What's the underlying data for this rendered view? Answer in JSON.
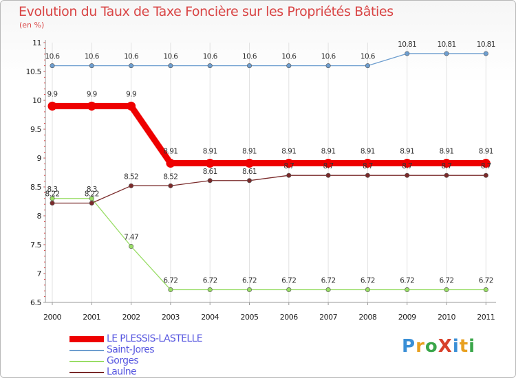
{
  "title": "Evolution du Taux de Taxe Foncière sur les Propriétés Bâties",
  "unit": "(en %)",
  "logo_text": "ProXiti",
  "chart_data": {
    "type": "line",
    "categories": [
      "2000",
      "2001",
      "2002",
      "2003",
      "2004",
      "2005",
      "2006",
      "2007",
      "2008",
      "2009",
      "2010",
      "2011"
    ],
    "ylim": [
      6.5,
      11
    ],
    "yticks": [
      "6.5",
      "7",
      "7.5",
      "8",
      "8.5",
      "9",
      "9.5",
      "10",
      "10.5",
      "11"
    ],
    "series": [
      {
        "name": "LE PLESSIS-LASTELLE",
        "color": "#ee0000",
        "values": [
          9.9,
          9.9,
          9.9,
          8.91,
          8.91,
          8.91,
          8.91,
          8.91,
          8.91,
          8.91,
          8.91,
          8.91
        ],
        "labels": [
          "9.9",
          "9.9",
          "9.9",
          "8.91",
          "8.91",
          "8.91",
          "8.91",
          "8.91",
          "8.91",
          "8.91",
          "8.91",
          "8.91"
        ]
      },
      {
        "name": "Saint-Jores",
        "color": "#6e9ecf",
        "values": [
          10.6,
          10.6,
          10.6,
          10.6,
          10.6,
          10.6,
          10.6,
          10.6,
          10.6,
          10.81,
          10.81,
          10.81
        ],
        "labels": [
          "10.6",
          "10.6",
          "10.6",
          "10.6",
          "10.6",
          "10.6",
          "10.6",
          "10.6",
          "10.6",
          "10.81",
          "10.81",
          "10.81"
        ]
      },
      {
        "name": "Gorges",
        "color": "#99dd66",
        "values": [
          8.3,
          8.3,
          7.47,
          6.72,
          6.72,
          6.72,
          6.72,
          6.72,
          6.72,
          6.72,
          6.72,
          6.72
        ],
        "labels": [
          "8.3",
          "8.3",
          "7.47",
          "6.72",
          "6.72",
          "6.72",
          "6.72",
          "6.72",
          "6.72",
          "6.72",
          "6.72",
          "6.72"
        ]
      },
      {
        "name": "Laulne",
        "color": "#7a2a2a",
        "values": [
          8.22,
          8.22,
          8.52,
          8.52,
          8.61,
          8.61,
          8.7,
          8.7,
          8.7,
          8.7,
          8.7,
          8.7
        ],
        "labels": [
          "8.22",
          "8.22",
          "8.52",
          "8.52",
          "8.61",
          "8.61",
          "8.7",
          "8.7",
          "8.7",
          "8.7",
          "8.7",
          "8.7"
        ]
      }
    ]
  }
}
